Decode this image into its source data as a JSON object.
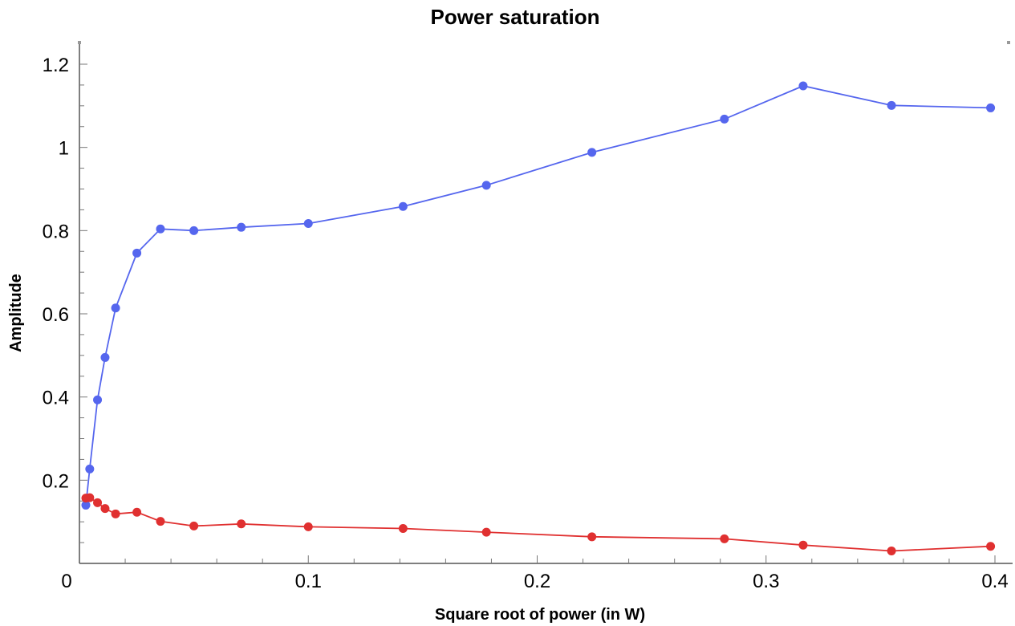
{
  "chart_data": {
    "type": "line",
    "title": "Power saturation",
    "xlabel": "Square root of power (in W)",
    "ylabel": "Amplitude",
    "xlim": [
      0,
      0.4
    ],
    "ylim": [
      0,
      1.2
    ],
    "x_ticks": [
      {
        "value": 0,
        "label": "0"
      },
      {
        "value": 0.1,
        "label": "0.1"
      },
      {
        "value": 0.2,
        "label": "0.2"
      },
      {
        "value": 0.3,
        "label": "0.3"
      },
      {
        "value": 0.4,
        "label": "0.4"
      }
    ],
    "y_ticks": [
      {
        "value": 0.2,
        "label": "0.2"
      },
      {
        "value": 0.4,
        "label": "0.4"
      },
      {
        "value": 0.6,
        "label": "0.6"
      },
      {
        "value": 0.8,
        "label": "0.8"
      },
      {
        "value": 1.0,
        "label": "1"
      },
      {
        "value": 1.2,
        "label": "1.2"
      }
    ],
    "grid": false,
    "series": [
      {
        "color": "#5566ee",
        "points": [
          [
            0.0028,
            0.14
          ],
          [
            0.0045,
            0.227
          ],
          [
            0.0079,
            0.393
          ],
          [
            0.0112,
            0.495
          ],
          [
            0.0158,
            0.614
          ],
          [
            0.0251,
            0.746
          ],
          [
            0.0354,
            0.804
          ],
          [
            0.05,
            0.8
          ],
          [
            0.0707,
            0.808
          ],
          [
            0.1,
            0.817
          ],
          [
            0.1414,
            0.858
          ],
          [
            0.1778,
            0.909
          ],
          [
            0.2239,
            0.988
          ],
          [
            0.2818,
            1.068
          ],
          [
            0.3162,
            1.148
          ],
          [
            0.3548,
            1.101
          ],
          [
            0.3981,
            1.095
          ]
        ]
      },
      {
        "color": "#e03030",
        "points": [
          [
            0.0028,
            0.157
          ],
          [
            0.0045,
            0.158
          ],
          [
            0.0079,
            0.146
          ],
          [
            0.0112,
            0.132
          ],
          [
            0.0158,
            0.119
          ],
          [
            0.0251,
            0.123
          ],
          [
            0.0354,
            0.101
          ],
          [
            0.05,
            0.09
          ],
          [
            0.0707,
            0.095
          ],
          [
            0.1,
            0.088
          ],
          [
            0.1414,
            0.084
          ],
          [
            0.1778,
            0.075
          ],
          [
            0.2239,
            0.064
          ],
          [
            0.2818,
            0.059
          ],
          [
            0.3162,
            0.044
          ],
          [
            0.3548,
            0.03
          ],
          [
            0.3981,
            0.041
          ]
        ]
      }
    ]
  }
}
